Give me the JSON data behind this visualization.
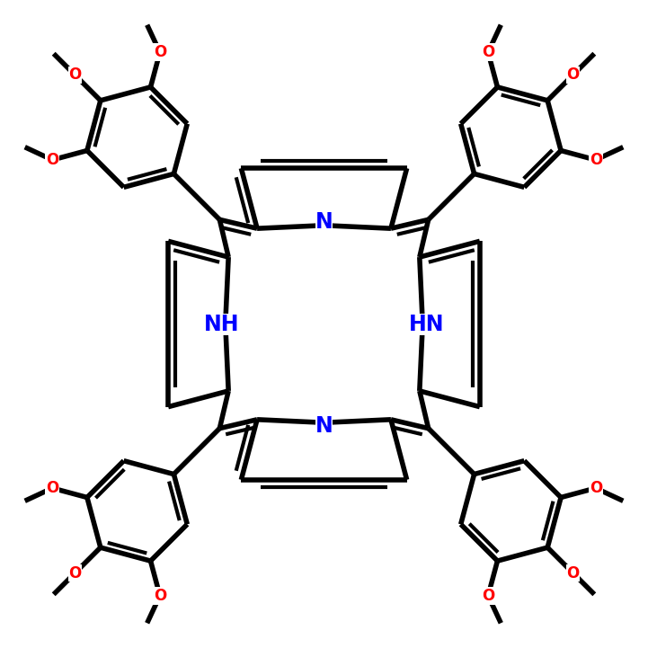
{
  "background_color": "#ffffff",
  "bond_color": "#000000",
  "bond_width": 4.0,
  "N_color": "#0000ff",
  "O_color": "#ff0000",
  "font_size_N": 17,
  "xlim": [
    -4.5,
    4.5
  ],
  "ylim": [
    -4.5,
    4.5
  ]
}
